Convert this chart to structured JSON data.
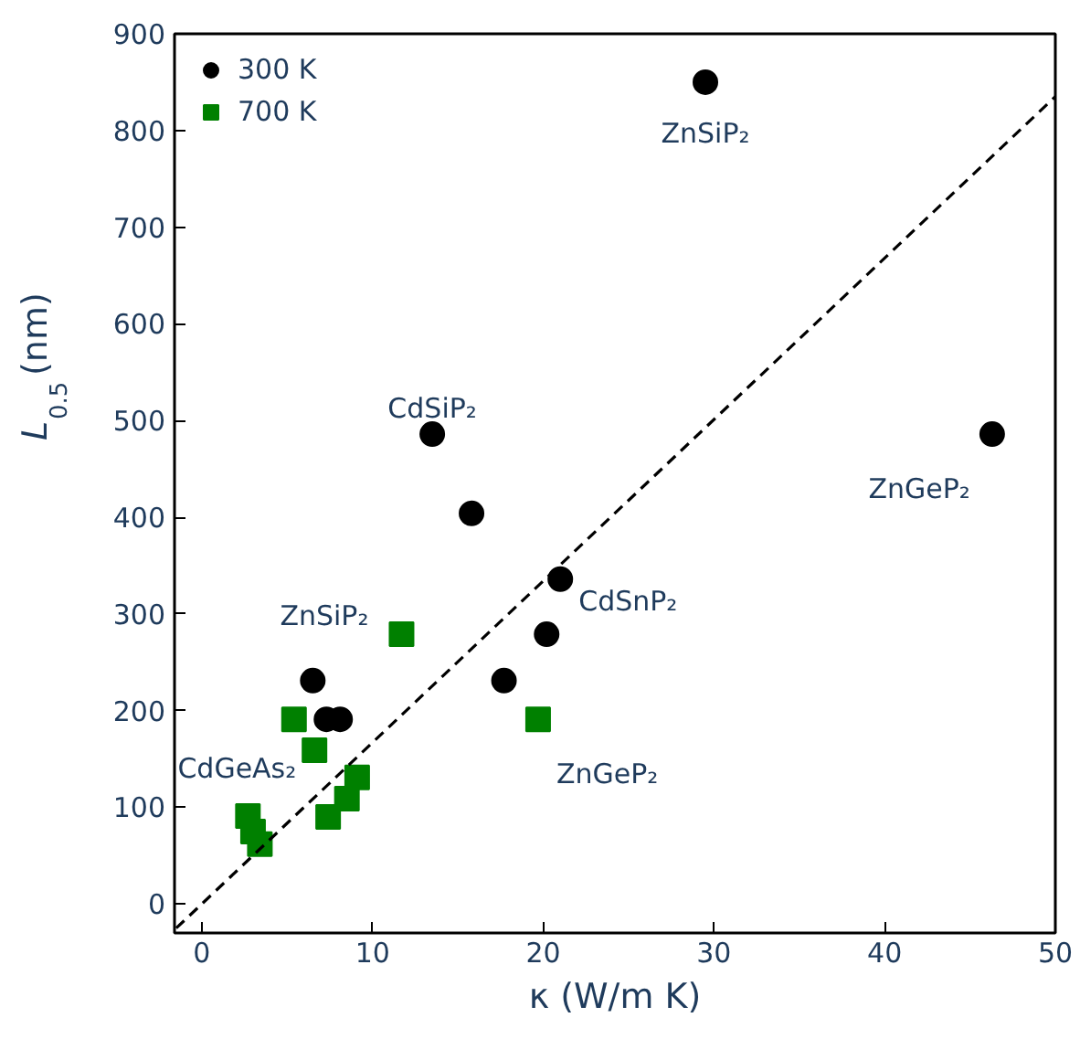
{
  "chart_data": {
    "type": "scatter",
    "xlabel": "κ (W/m K)",
    "ylabel": "L$_{0.5}$ (nm)",
    "xlim": [
      -1.6,
      50
    ],
    "ylim": [
      -30,
      900
    ],
    "xticks": [
      0,
      10,
      20,
      30,
      40,
      50
    ],
    "yticks": [
      0,
      100,
      200,
      300,
      400,
      500,
      600,
      700,
      800,
      900
    ],
    "grid": false,
    "legend": "top left",
    "series": [
      {
        "name": "300 K",
        "marker": "circle",
        "color": "#000000",
        "x": [
          29.5,
          13.5,
          15.8,
          46.3,
          6.5,
          7.3,
          8.1,
          17.7,
          20.2,
          21.0
        ],
        "values": [
          850,
          486,
          404,
          486,
          231,
          191,
          191,
          231,
          279,
          336
        ]
      },
      {
        "name": "700 K",
        "marker": "square",
        "color": "#008000",
        "x": [
          11.7,
          5.4,
          6.6,
          19.7,
          9.1,
          8.5,
          7.4,
          2.7,
          3.0,
          3.4
        ],
        "values": [
          279,
          191,
          159,
          191,
          131,
          109,
          90,
          91,
          75,
          62
        ]
      },
      {
        "type": "line",
        "line_style": "dashed",
        "color": "#000000",
        "x": [
          -1.5,
          50
        ],
        "values": [
          -25,
          835
        ]
      }
    ],
    "annotations": [
      {
        "text": "ZnSiP₂",
        "x": 29.5,
        "y": 850
      },
      {
        "text": "CdSiP₂",
        "x": 13.5,
        "y": 486
      },
      {
        "text": "ZnGeP₂",
        "x": 46.3,
        "y": 486
      },
      {
        "text": "CdSnP₂",
        "x": 21.0,
        "y": 336
      },
      {
        "text": "ZnSiP₂",
        "x": 11.7,
        "y": 279
      },
      {
        "text": "ZnGeP₂",
        "x": 19.7,
        "y": 191
      },
      {
        "text": "CdGeAs₂",
        "x": 2.7,
        "y": 91
      }
    ]
  }
}
